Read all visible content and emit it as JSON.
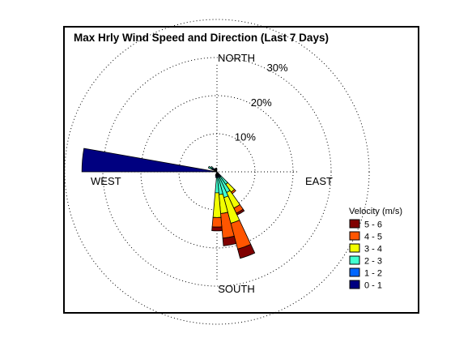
{
  "chart_data": {
    "type": "windrose",
    "title": "Max Hrly Wind Speed and Direction (Last 7 Days)",
    "direction_labels": {
      "north": "NORTH",
      "east": "EAST",
      "south": "SOUTH",
      "west": "WEST"
    },
    "radial_ticks": [
      10,
      20,
      30
    ],
    "radial_tick_labels": [
      "10%",
      "20%",
      "30%"
    ],
    "radial_max": 40,
    "legend": {
      "title": "Velocity (m/s)",
      "bins": [
        {
          "label": "5 - 6",
          "color": "#800000"
        },
        {
          "label": "4 - 5",
          "color": "#ff5500"
        },
        {
          "label": "3 - 4",
          "color": "#f2ff00"
        },
        {
          "label": "2 - 3",
          "color": "#40ffd0"
        },
        {
          "label": "1 - 2",
          "color": "#0066ff"
        },
        {
          "label": "0 - 1",
          "color": "#000080"
        }
      ]
    },
    "sectors": [
      {
        "direction_deg": 275,
        "cumulative_percent": [
          35.5
        ]
      },
      {
        "direction_deg": 160,
        "cumulative_percent": [
          0.5,
          1.5,
          7.0,
          14.0,
          21.0,
          23.5
        ]
      },
      {
        "direction_deg": 170,
        "cumulative_percent": [
          0.5,
          1.5,
          6.0,
          11.0,
          17.5,
          19.5
        ]
      },
      {
        "direction_deg": 150,
        "cumulative_percent": [
          0.5,
          1.5,
          6.0,
          10.5,
          12.0,
          12.5
        ]
      },
      {
        "direction_deg": 180,
        "cumulative_percent": [
          0.5,
          1.5,
          5.5,
          12.0,
          14.5,
          15.5
        ]
      },
      {
        "direction_deg": 140,
        "cumulative_percent": [
          0.5,
          1.5,
          4.0,
          6.5,
          7.0
        ]
      },
      {
        "direction_deg": 300,
        "cumulative_percent": [
          0.5,
          1.5,
          2.5
        ]
      },
      {
        "direction_deg": 310,
        "cumulative_percent": [
          0.5,
          1.5,
          2.0
        ]
      },
      {
        "direction_deg": 320,
        "cumulative_percent": [
          0.5,
          1.0
        ]
      },
      {
        "direction_deg": 330,
        "cumulative_percent": [
          0.5,
          1.0
        ]
      },
      {
        "direction_deg": 350,
        "cumulative_percent": [
          0.5,
          1.0
        ]
      },
      {
        "direction_deg": 190,
        "cumulative_percent": [
          0.5,
          1.5
        ]
      },
      {
        "direction_deg": 200,
        "cumulative_percent": [
          0.5,
          1.0
        ]
      }
    ]
  }
}
